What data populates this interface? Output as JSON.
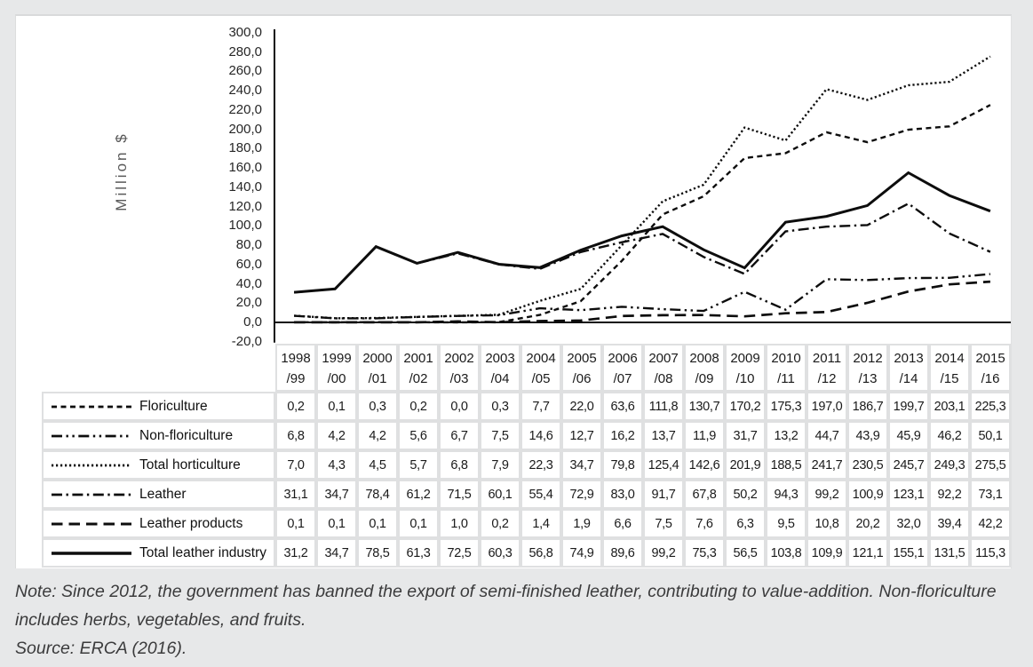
{
  "figure": {
    "y_axis_title": "Million $",
    "y_tick_labels": [
      "300,0",
      "280,0",
      "260,0",
      "240,0",
      "220,0",
      "200,0",
      "180,0",
      "160,0",
      "140,0",
      "120,0",
      "100,0",
      "80,0",
      "60,0",
      "40,0",
      "20,0",
      "0,0",
      "-20,0"
    ],
    "colors": {
      "page_background": "#e7e8e9",
      "panel_background": "#ffffff",
      "line_color": "#0d0d0d",
      "table_gutter": "#dfe0e1",
      "axis_text": "#262626",
      "note_text": "#3b3b3c"
    }
  },
  "chart_data": {
    "type": "line",
    "title": "",
    "xlabel": "",
    "ylabel": "Million $",
    "ylim": [
      -20,
      300
    ],
    "ytick_step": 20,
    "grid": false,
    "legend_position": "table-left",
    "decimal_separator": ",",
    "categories": [
      "1998/99",
      "1999/00",
      "2000/01",
      "2001/02",
      "2002/03",
      "2003/04",
      "2004/05",
      "2005/06",
      "2006/07",
      "2007/08",
      "2008/09",
      "2009/10",
      "2010/11",
      "2011/12",
      "2012/13",
      "2013/14",
      "2014/15",
      "2015/16"
    ],
    "series": [
      {
        "name": "Floriculture",
        "line_style": "dashed",
        "values": [
          0.2,
          0.1,
          0.3,
          0.2,
          0.0,
          0.3,
          7.7,
          22.0,
          63.6,
          111.8,
          130.7,
          170.2,
          175.3,
          197.0,
          186.7,
          199.7,
          203.1,
          225.3
        ]
      },
      {
        "name": "Non-floriculture",
        "line_style": "long-dash-dot-dot",
        "values": [
          6.8,
          4.2,
          4.2,
          5.6,
          6.7,
          7.5,
          14.6,
          12.7,
          16.2,
          13.7,
          11.9,
          31.7,
          13.2,
          44.7,
          43.9,
          45.9,
          46.2,
          50.1
        ]
      },
      {
        "name": "Total horticulture",
        "line_style": "dotted",
        "values": [
          7.0,
          4.3,
          4.5,
          5.7,
          6.8,
          7.9,
          22.3,
          34.7,
          79.8,
          125.4,
          142.6,
          201.9,
          188.5,
          241.7,
          230.5,
          245.7,
          249.3,
          275.5
        ]
      },
      {
        "name": "Leather",
        "line_style": "long-dash-dot",
        "values": [
          31.1,
          34.7,
          78.4,
          61.2,
          71.5,
          60.1,
          55.4,
          72.9,
          83.0,
          91.7,
          67.8,
          50.2,
          94.3,
          99.2,
          100.9,
          123.1,
          92.2,
          73.1
        ]
      },
      {
        "name": "Leather products",
        "line_style": "long-dash",
        "values": [
          0.1,
          0.1,
          0.1,
          0.1,
          1.0,
          0.2,
          1.4,
          1.9,
          6.6,
          7.5,
          7.6,
          6.3,
          9.5,
          10.8,
          20.2,
          32.0,
          39.4,
          42.2
        ]
      },
      {
        "name": "Total leather industry",
        "line_style": "solid",
        "values": [
          31.2,
          34.7,
          78.5,
          61.3,
          72.5,
          60.3,
          56.8,
          74.9,
          89.6,
          99.2,
          75.3,
          56.5,
          103.8,
          109.9,
          121.1,
          155.1,
          131.5,
          115.3
        ]
      }
    ]
  },
  "footnote": {
    "note": "Note: Since 2012, the government has banned the export of semi-finished leather, contributing to value-addition. Non-floriculture includes herbs, vegetables, and fruits.",
    "source": "Source: ERCA (2016)."
  }
}
